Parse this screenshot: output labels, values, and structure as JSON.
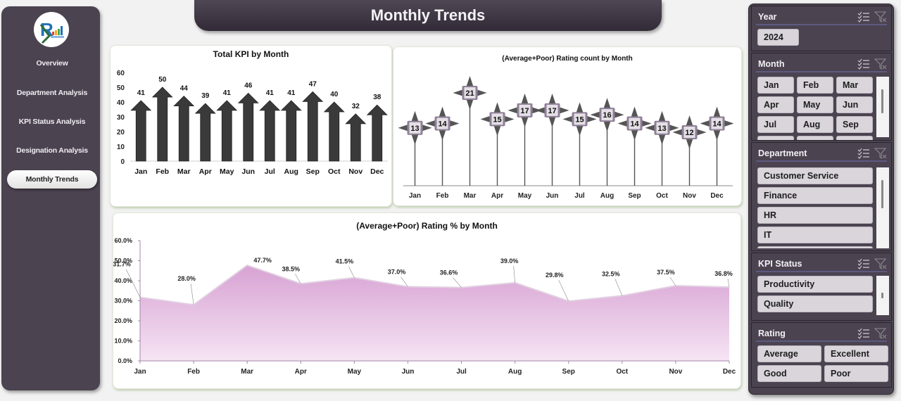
{
  "sidebar": {
    "logo": "company-logo",
    "items": [
      {
        "label": "Overview",
        "active": false
      },
      {
        "label": "Department Analysis",
        "active": false
      },
      {
        "label": "KPI Status Analysis",
        "active": false
      },
      {
        "label": "Designation Analysis",
        "active": false
      },
      {
        "label": "Monthly Trends",
        "active": true
      }
    ]
  },
  "header": {
    "title": "Monthly Trends"
  },
  "charts": {
    "kpi": {
      "title": "Total KPI by Month"
    },
    "count": {
      "title": "(Average+Poor) Rating count by Month"
    },
    "pct": {
      "title": "(Average+Poor) Rating % by Month"
    }
  },
  "chart_data": [
    {
      "type": "bar",
      "title": "Total KPI by Month",
      "categories": [
        "Jan",
        "Feb",
        "Mar",
        "Apr",
        "May",
        "Jun",
        "Jul",
        "Aug",
        "Sep",
        "Oct",
        "Nov",
        "Dec"
      ],
      "values": [
        41,
        50,
        44,
        39,
        41,
        46,
        41,
        41,
        47,
        40,
        32,
        38
      ],
      "ylim": [
        0,
        60
      ],
      "yticks": [
        0,
        10,
        20,
        30,
        40,
        50,
        60
      ],
      "xlabel": "",
      "ylabel": "",
      "marker": "up-arrow",
      "color": "#3a3a3a"
    },
    {
      "type": "scatter",
      "title": "(Average+Poor) Rating count by Month",
      "categories": [
        "Jan",
        "Feb",
        "Mar",
        "Apr",
        "May",
        "Jun",
        "Jul",
        "Aug",
        "Sep",
        "Oct",
        "Nov",
        "Dec"
      ],
      "values": [
        13,
        14,
        21,
        15,
        17,
        17,
        15,
        16,
        14,
        13,
        12,
        14
      ],
      "marker": "four-point-star with drop line",
      "color": "#555555"
    },
    {
      "type": "area",
      "title": "(Average+Poor) Rating % by Month",
      "categories": [
        "Jan",
        "Feb",
        "Mar",
        "Apr",
        "May",
        "Jun",
        "Jul",
        "Aug",
        "Sep",
        "Oct",
        "Nov",
        "Dec"
      ],
      "values": [
        31.7,
        28.0,
        47.7,
        38.5,
        41.5,
        37.0,
        36.6,
        39.0,
        29.8,
        32.5,
        37.5,
        36.8
      ],
      "labels": [
        "31.7%",
        "28.0%",
        "47.7%",
        "38.5%",
        "41.5%",
        "37.0%",
        "36.6%",
        "39.0%",
        "29.8%",
        "32.5%",
        "37.5%",
        "36.8%"
      ],
      "ylim": [
        0,
        60
      ],
      "yticks": [
        "0.0%",
        "10.0%",
        "20.0%",
        "30.0%",
        "40.0%",
        "50.0%",
        "60.0%"
      ],
      "color": "#d9a8d6"
    }
  ],
  "slicers": {
    "year": {
      "title": "Year",
      "items": [
        "2024"
      ]
    },
    "month": {
      "title": "Month",
      "items": [
        "Jan",
        "Feb",
        "Mar",
        "Apr",
        "May",
        "Jun",
        "Jul",
        "Aug",
        "Sep"
      ]
    },
    "department": {
      "title": "Department",
      "items": [
        "Customer Service",
        "Finance",
        "HR",
        "IT"
      ]
    },
    "kpi_status": {
      "title": "KPI Status",
      "items": [
        "Productivity",
        "Quality"
      ]
    },
    "rating": {
      "title": "Rating",
      "items": [
        "Average",
        "Excellent",
        "Good",
        "Poor"
      ]
    },
    "icons": {
      "multi_select": "multi-select-icon",
      "clear_filter": "clear-filter-icon"
    }
  }
}
